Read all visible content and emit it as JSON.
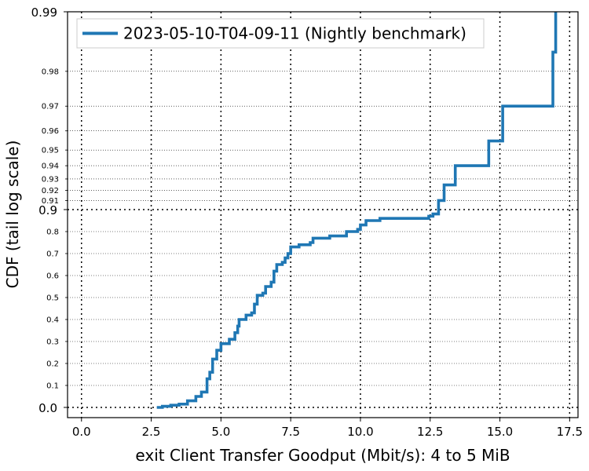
{
  "chart_data": {
    "type": "line",
    "xlabel": "exit Client Transfer Goodput (Mbit/s): 4 to 5 MiB",
    "ylabel": "CDF (tail log scale)",
    "xlim": [
      -0.5,
      17.8
    ],
    "x_scale": "linear",
    "y_scale": "tail log",
    "grid": true,
    "legend_position": "top-left",
    "line_color": "#1f77b4",
    "x_ticks": [
      0.0,
      2.5,
      5.0,
      7.5,
      10.0,
      12.5,
      15.0,
      17.5
    ],
    "x_tick_labels": [
      "0.0",
      "2.5",
      "5.0",
      "7.5",
      "10.0",
      "12.5",
      "15.0",
      "17.5"
    ],
    "y_major_ticks": [
      0.0,
      0.9,
      0.99
    ],
    "y_major_labels": [
      "0.0",
      "0.9",
      "0.99"
    ],
    "y_minor_ticks": [
      0.1,
      0.2,
      0.3,
      0.4,
      0.5,
      0.6,
      0.7,
      0.8,
      0.91,
      0.92,
      0.93,
      0.94,
      0.95,
      0.96,
      0.97,
      0.98
    ],
    "y_minor_labels": [
      "0.1",
      "0.2",
      "0.3",
      "0.4",
      "0.5",
      "0.6",
      "0.7",
      "0.8",
      "0.91",
      "0.92",
      "0.93",
      "0.94",
      "0.95",
      "0.96",
      "0.97",
      "0.98"
    ],
    "series": [
      {
        "name": "2023-05-10-T04-09-11 (Nightly benchmark)",
        "points": [
          [
            2.7,
            0.0
          ],
          [
            2.9,
            0.005
          ],
          [
            3.2,
            0.01
          ],
          [
            3.5,
            0.015
          ],
          [
            3.8,
            0.03
          ],
          [
            4.1,
            0.05
          ],
          [
            4.3,
            0.07
          ],
          [
            4.5,
            0.13
          ],
          [
            4.6,
            0.16
          ],
          [
            4.7,
            0.22
          ],
          [
            4.85,
            0.26
          ],
          [
            5.0,
            0.29
          ],
          [
            5.3,
            0.31
          ],
          [
            5.5,
            0.34
          ],
          [
            5.6,
            0.37
          ],
          [
            5.65,
            0.4
          ],
          [
            5.9,
            0.42
          ],
          [
            6.1,
            0.43
          ],
          [
            6.2,
            0.47
          ],
          [
            6.3,
            0.51
          ],
          [
            6.5,
            0.52
          ],
          [
            6.6,
            0.55
          ],
          [
            6.8,
            0.57
          ],
          [
            6.9,
            0.62
          ],
          [
            7.0,
            0.65
          ],
          [
            7.2,
            0.66
          ],
          [
            7.3,
            0.68
          ],
          [
            7.4,
            0.7
          ],
          [
            7.5,
            0.73
          ],
          [
            7.8,
            0.74
          ],
          [
            8.2,
            0.75
          ],
          [
            8.3,
            0.77
          ],
          [
            8.9,
            0.78
          ],
          [
            9.5,
            0.8
          ],
          [
            9.9,
            0.81
          ],
          [
            10.0,
            0.83
          ],
          [
            10.2,
            0.85
          ],
          [
            10.7,
            0.86
          ],
          [
            12.45,
            0.87
          ],
          [
            12.6,
            0.88
          ],
          [
            12.8,
            0.91
          ],
          [
            13.0,
            0.925
          ],
          [
            13.4,
            0.94
          ],
          [
            14.6,
            0.955
          ],
          [
            15.1,
            0.97
          ],
          [
            16.9,
            0.984
          ],
          [
            17.0,
            0.99
          ]
        ]
      }
    ]
  }
}
